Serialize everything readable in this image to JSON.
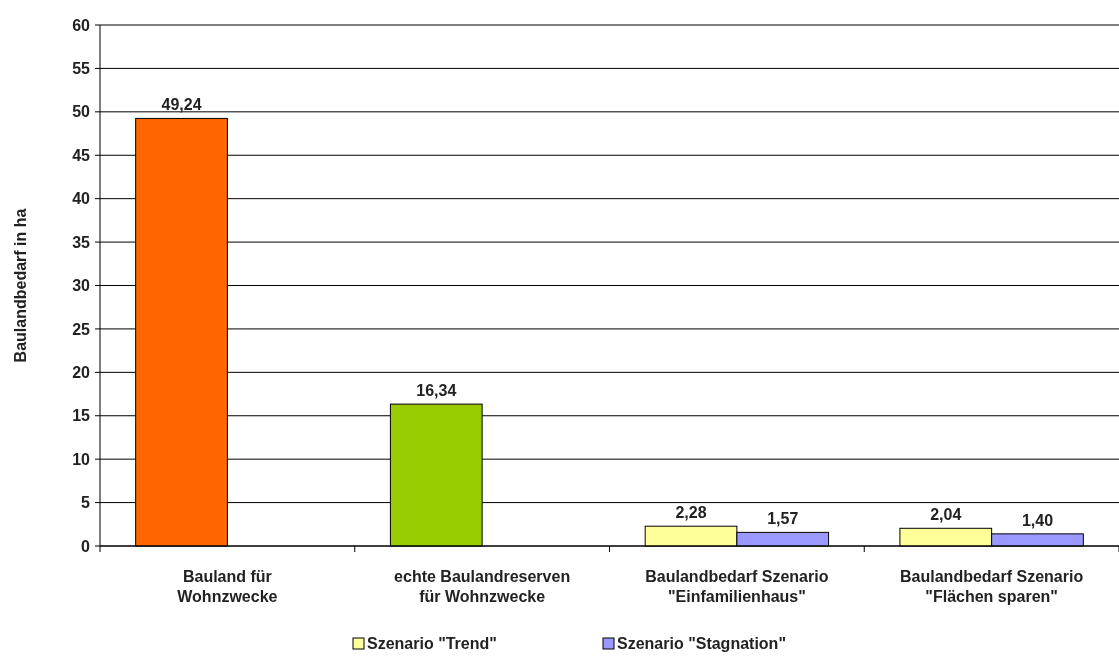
{
  "chart_data": {
    "type": "bar",
    "ylabel": "Baulandbedarf in ha",
    "categories": [
      "Bauland für\nWohnzwecke",
      "echte Baulandreserven\nfür Wohnzwecke",
      "Baulandbedarf Szenario\n\"Einfamilienhaus\"",
      "Baulandbedarf Szenario\n\"Flächen sparen\""
    ],
    "series": [
      {
        "name": "Szenario \"Trend\"",
        "color": "#ffff99",
        "colors": [
          "#ff6600",
          "#99cc00",
          "#ffff99",
          "#ffff99"
        ],
        "values": [
          49.24,
          16.34,
          2.28,
          2.04
        ],
        "value_labels": [
          "49,24",
          "16,34",
          "2,28",
          "2,04"
        ]
      },
      {
        "name": "Szenario \"Stagnation\"",
        "color": "#9999ff",
        "values": [
          null,
          null,
          1.57,
          1.4
        ],
        "value_labels": [
          null,
          null,
          "1,57",
          "1,40"
        ]
      }
    ],
    "ylim": [
      0,
      60
    ],
    "yticks": [
      0,
      5,
      10,
      15,
      20,
      25,
      30,
      35,
      40,
      45,
      50,
      55,
      60
    ],
    "grid": "y",
    "legend": "bottom"
  }
}
